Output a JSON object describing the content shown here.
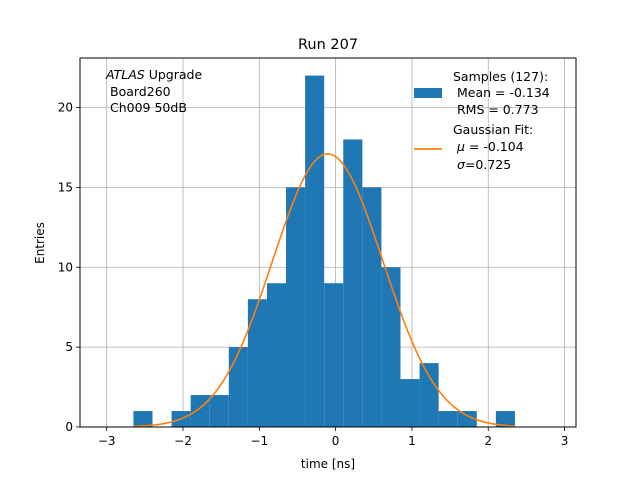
{
  "chart_data": {
    "type": "bar",
    "title": "Run 207",
    "xlabel": "time [ns]",
    "ylabel": "Entries",
    "xlim": [
      -3.35,
      3.15
    ],
    "ylim": [
      0,
      23.1
    ],
    "xticks": [
      -3,
      -2,
      -1,
      0,
      1,
      2,
      3
    ],
    "xtick_labels": [
      "−3",
      "−2",
      "−1",
      "0",
      "1",
      "2",
      "3"
    ],
    "yticks": [
      0,
      5,
      10,
      15,
      20
    ],
    "ytick_labels": [
      "0",
      "5",
      "10",
      "15",
      "20"
    ],
    "grid": true,
    "bar_color": "#1f77b4",
    "fit_color": "#ff7f0e",
    "bin_edges": [
      -2.65,
      -2.4,
      -2.15,
      -1.9,
      -1.65,
      -1.4,
      -1.15,
      -0.9,
      -0.65,
      -0.4,
      -0.15,
      0.1,
      0.35,
      0.6,
      0.85,
      1.1,
      1.35,
      1.6,
      1.85,
      2.1,
      2.35
    ],
    "values": [
      1,
      0,
      1,
      2,
      2,
      5,
      8,
      9,
      15,
      22,
      9,
      18,
      15,
      10,
      3,
      4,
      1,
      1,
      0,
      1
    ],
    "fit": {
      "amplitude": 17.1,
      "mu": -0.104,
      "sigma": 0.725,
      "x_range": [
        -2.65,
        2.35
      ]
    },
    "annotation": [
      "ATLAS",
      " Upgrade",
      "Board260",
      "Ch009 50dB"
    ],
    "legend": {
      "position": "top-right",
      "hist_lines": [
        "Samples (127):",
        " Mean = -0.134",
        " RMS = 0.773"
      ],
      "fit_prefix": "Gaussian Fit:",
      "fit_mu_symbol": "μ",
      "fit_mu_text": " = -0.104",
      "fit_sigma_symbol": "σ",
      "fit_sigma_text": "=0.725"
    }
  }
}
